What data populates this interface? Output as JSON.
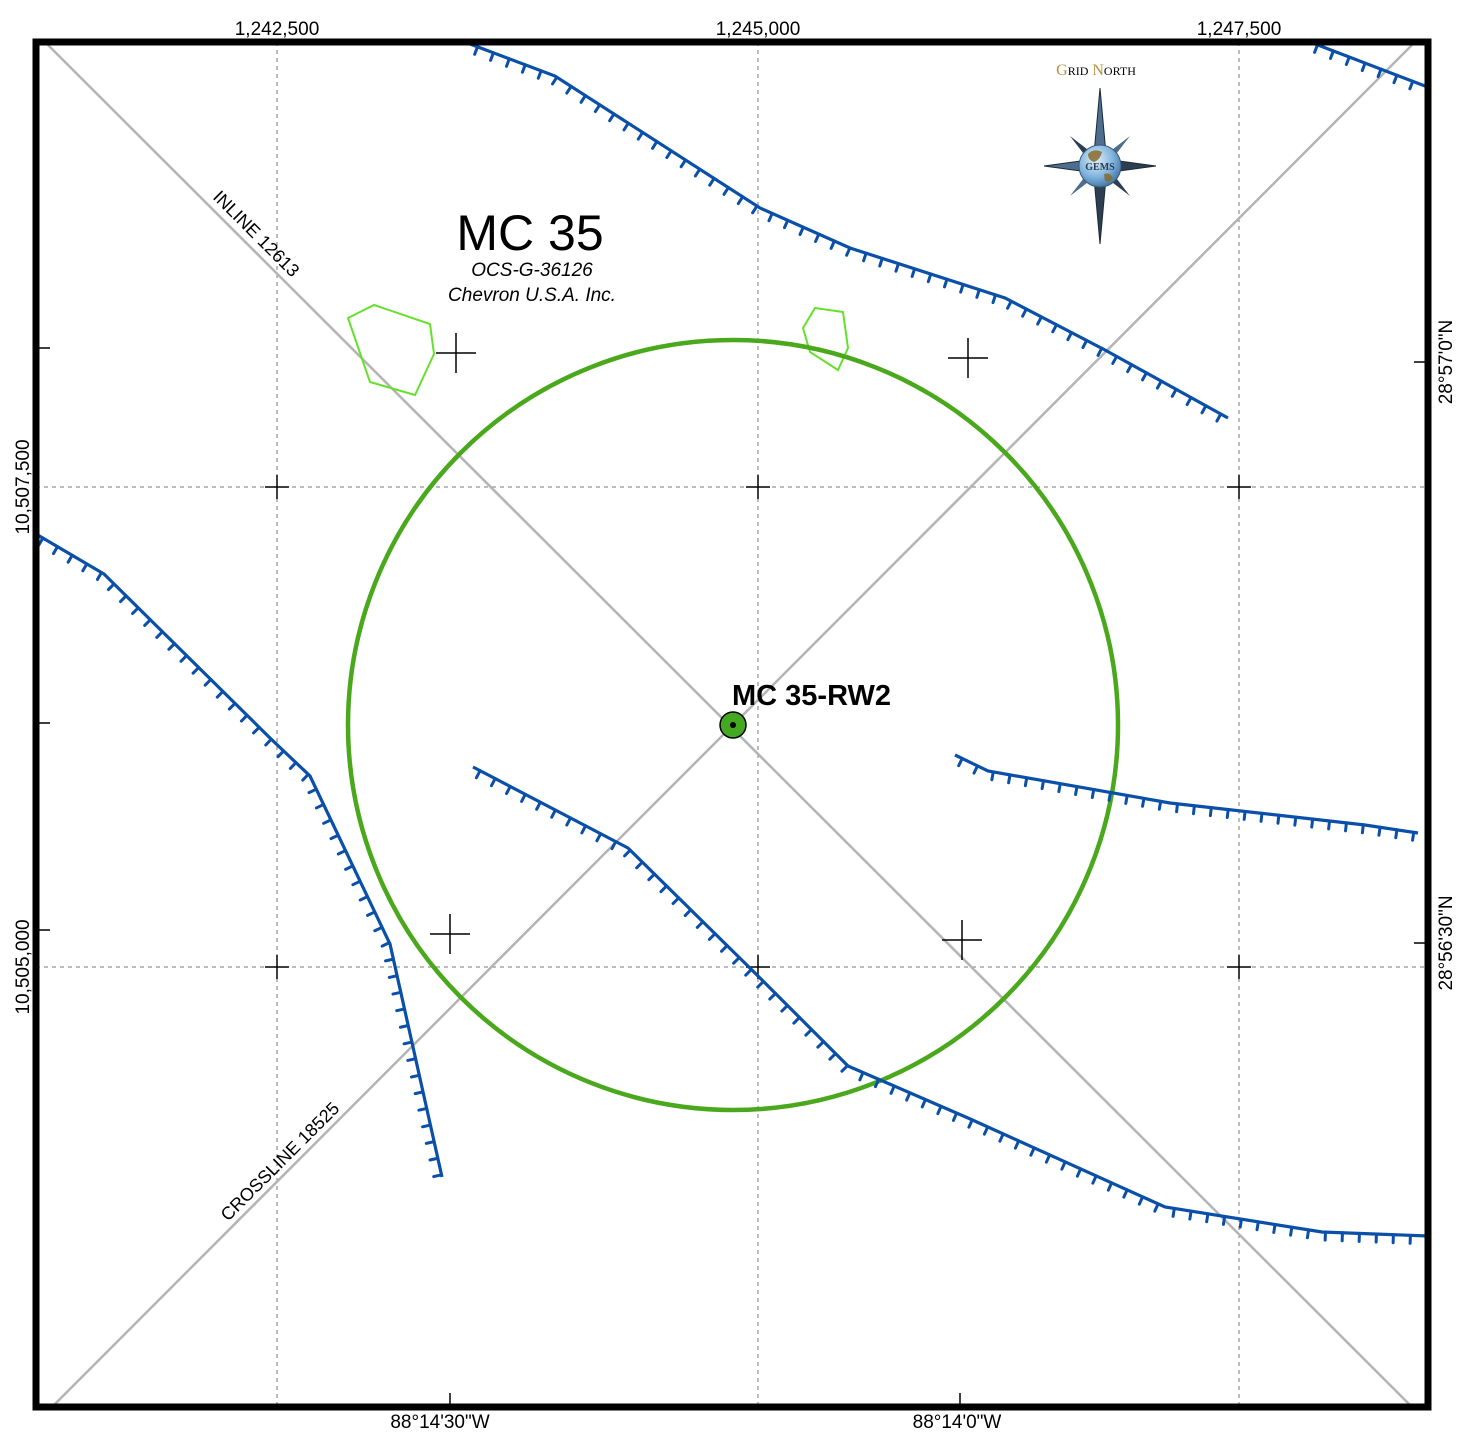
{
  "map": {
    "block_name": "MC 35",
    "lease_number": "OCS-G-36126",
    "operator": "Chevron U.S.A. Inc.",
    "well": {
      "label": "MC 35-RW2",
      "color": "#44a820"
    },
    "seismic_lines": {
      "inline": "INLINE 12613",
      "crossline": "CROSSLINE 18525"
    },
    "grid_labels": {
      "top": [
        "1,242,500",
        "1,245,000",
        "1,247,500"
      ],
      "left": [
        "10,507,500",
        "10,505,000"
      ],
      "right": [
        "28°57'0\"N",
        "28°56'30\"N"
      ],
      "bottom": [
        "88°14'30\"W",
        "88°14'0\"W"
      ]
    },
    "north_arrow": {
      "word1_initial": "G",
      "word1_rest": "RID",
      "word2_initial": "N",
      "word2_rest": "ORTH",
      "badge": "GEMS"
    },
    "colors": {
      "faults": "#0a4fa8",
      "radius_circle": "#4aa81c",
      "hazard_polygons": "#66e02c",
      "seismic_lines": "#b4b4b4",
      "frame": "#000000"
    },
    "icons": [
      "north-arrow-icon",
      "well-symbol-icon",
      "fault-line-icon",
      "grid-tick-icon"
    ]
  }
}
